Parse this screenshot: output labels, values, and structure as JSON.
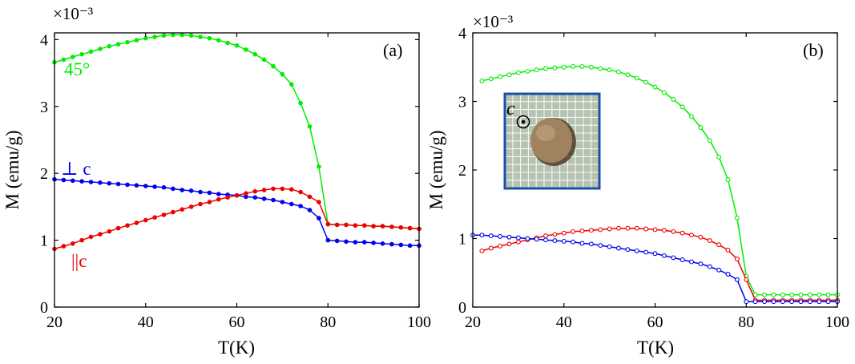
{
  "chart_data": [
    {
      "panel_label": "(a)",
      "type": "line",
      "xlabel": "T(K)",
      "ylabel": "M (emu/g)",
      "exponent_label": "×10⁻³",
      "xlim": [
        20,
        100
      ],
      "ylim": [
        0,
        4.1
      ],
      "xticks": [
        "20",
        "40",
        "60",
        "80",
        "100"
      ],
      "yticks": [
        "0",
        "1",
        "2",
        "3",
        "4"
      ],
      "marker": "filled",
      "series": [
        {
          "name": "45°",
          "color": "#00ee00",
          "x": [
            20,
            22,
            24,
            26,
            28,
            30,
            32,
            34,
            36,
            38,
            40,
            42,
            44,
            46,
            48,
            50,
            52,
            54,
            56,
            58,
            60,
            62,
            64,
            66,
            68,
            70,
            72,
            74,
            76,
            78,
            80,
            82,
            84,
            86,
            88,
            90,
            92,
            94,
            96,
            98,
            100
          ],
          "y": [
            3.66,
            3.7,
            3.74,
            3.78,
            3.82,
            3.86,
            3.9,
            3.93,
            3.96,
            3.99,
            4.02,
            4.04,
            4.06,
            4.07,
            4.07,
            4.06,
            4.04,
            4.02,
            3.99,
            3.95,
            3.91,
            3.85,
            3.78,
            3.7,
            3.6,
            3.48,
            3.33,
            3.05,
            2.7,
            2.1,
            1.24,
            1.23,
            1.23,
            1.22,
            1.22,
            1.21,
            1.21,
            1.2,
            1.19,
            1.18,
            1.17
          ]
        },
        {
          "name": "⊥ c",
          "color": "#0000ee",
          "x": [
            20,
            22,
            24,
            26,
            28,
            30,
            32,
            34,
            36,
            38,
            40,
            42,
            44,
            46,
            48,
            50,
            52,
            54,
            56,
            58,
            60,
            62,
            64,
            66,
            68,
            70,
            72,
            74,
            76,
            78,
            80,
            82,
            84,
            86,
            88,
            90,
            92,
            94,
            96,
            98,
            100
          ],
          "y": [
            1.91,
            1.9,
            1.89,
            1.88,
            1.87,
            1.86,
            1.85,
            1.84,
            1.83,
            1.82,
            1.81,
            1.8,
            1.79,
            1.77,
            1.75,
            1.74,
            1.72,
            1.71,
            1.69,
            1.68,
            1.67,
            1.65,
            1.64,
            1.62,
            1.6,
            1.57,
            1.54,
            1.51,
            1.45,
            1.33,
            1.0,
            0.99,
            0.98,
            0.97,
            0.97,
            0.96,
            0.95,
            0.94,
            0.93,
            0.92,
            0.92
          ]
        },
        {
          "name": "||c",
          "color": "#ee0000",
          "x": [
            20,
            22,
            24,
            26,
            28,
            30,
            32,
            34,
            36,
            38,
            40,
            42,
            44,
            46,
            48,
            50,
            52,
            54,
            56,
            58,
            60,
            62,
            64,
            66,
            68,
            70,
            72,
            74,
            76,
            78,
            80,
            82,
            84,
            86,
            88,
            90,
            92,
            94,
            96,
            98,
            100
          ],
          "y": [
            0.87,
            0.91,
            0.95,
            1.0,
            1.05,
            1.09,
            1.13,
            1.18,
            1.22,
            1.26,
            1.3,
            1.34,
            1.38,
            1.42,
            1.46,
            1.5,
            1.54,
            1.57,
            1.61,
            1.64,
            1.67,
            1.7,
            1.73,
            1.75,
            1.77,
            1.77,
            1.76,
            1.72,
            1.65,
            1.57,
            1.24,
            1.23,
            1.23,
            1.22,
            1.22,
            1.21,
            1.21,
            1.2,
            1.19,
            1.18,
            1.17
          ]
        }
      ]
    },
    {
      "panel_label": "(b)",
      "type": "line",
      "xlabel": "T(K)",
      "ylabel": "M (emu/g)",
      "exponent_label": "×10⁻³",
      "xlim": [
        20,
        100
      ],
      "ylim": [
        0,
        4
      ],
      "xticks": [
        "20",
        "40",
        "60",
        "80",
        "100"
      ],
      "yticks": [
        "0",
        "1",
        "2",
        "3",
        "4"
      ],
      "marker": "open",
      "inset_label": "c",
      "series": [
        {
          "name": "45°",
          "color": "#00ee00",
          "x": [
            22,
            24,
            26,
            28,
            30,
            32,
            34,
            36,
            38,
            40,
            42,
            44,
            46,
            48,
            50,
            52,
            54,
            56,
            58,
            60,
            62,
            64,
            66,
            68,
            70,
            72,
            74,
            76,
            78,
            80,
            82,
            84,
            86,
            88,
            90,
            92,
            94,
            96,
            98,
            100
          ],
          "y": [
            3.3,
            3.33,
            3.36,
            3.39,
            3.42,
            3.44,
            3.46,
            3.48,
            3.49,
            3.5,
            3.51,
            3.51,
            3.5,
            3.48,
            3.46,
            3.43,
            3.39,
            3.34,
            3.28,
            3.21,
            3.13,
            3.03,
            2.92,
            2.78,
            2.62,
            2.43,
            2.19,
            1.86,
            1.3,
            0.45,
            0.18,
            0.18,
            0.18,
            0.18,
            0.18,
            0.18,
            0.18,
            0.18,
            0.18,
            0.18
          ]
        },
        {
          "name": "||c",
          "color": "#ee0000",
          "x": [
            22,
            24,
            26,
            28,
            30,
            32,
            34,
            36,
            38,
            40,
            42,
            44,
            46,
            48,
            50,
            52,
            54,
            56,
            58,
            60,
            62,
            64,
            66,
            68,
            70,
            72,
            74,
            76,
            78,
            80,
            82,
            84,
            86,
            88,
            90,
            92,
            94,
            96,
            98,
            100
          ],
          "y": [
            0.82,
            0.86,
            0.89,
            0.92,
            0.95,
            0.98,
            1.01,
            1.04,
            1.06,
            1.08,
            1.1,
            1.11,
            1.12,
            1.13,
            1.14,
            1.15,
            1.15,
            1.15,
            1.14,
            1.13,
            1.12,
            1.1,
            1.08,
            1.05,
            1.02,
            0.97,
            0.91,
            0.83,
            0.7,
            0.4,
            0.1,
            0.1,
            0.1,
            0.1,
            0.1,
            0.1,
            0.1,
            0.1,
            0.1,
            0.1
          ]
        },
        {
          "name": "⊥ c",
          "color": "#0000ee",
          "x": [
            20,
            22,
            24,
            26,
            28,
            30,
            32,
            34,
            36,
            38,
            40,
            42,
            44,
            46,
            48,
            50,
            52,
            54,
            56,
            58,
            60,
            62,
            64,
            66,
            68,
            70,
            72,
            74,
            76,
            78,
            80,
            82,
            84,
            86,
            88,
            90,
            92,
            94,
            96,
            98,
            100
          ],
          "y": [
            1.05,
            1.05,
            1.04,
            1.03,
            1.02,
            1.01,
            1.0,
            0.99,
            0.98,
            0.97,
            0.96,
            0.95,
            0.93,
            0.92,
            0.9,
            0.88,
            0.86,
            0.84,
            0.82,
            0.8,
            0.78,
            0.75,
            0.72,
            0.69,
            0.66,
            0.63,
            0.59,
            0.54,
            0.48,
            0.4,
            0.08,
            0.08,
            0.08,
            0.08,
            0.08,
            0.08,
            0.08,
            0.08,
            0.08,
            0.08,
            0.08
          ]
        }
      ]
    }
  ]
}
